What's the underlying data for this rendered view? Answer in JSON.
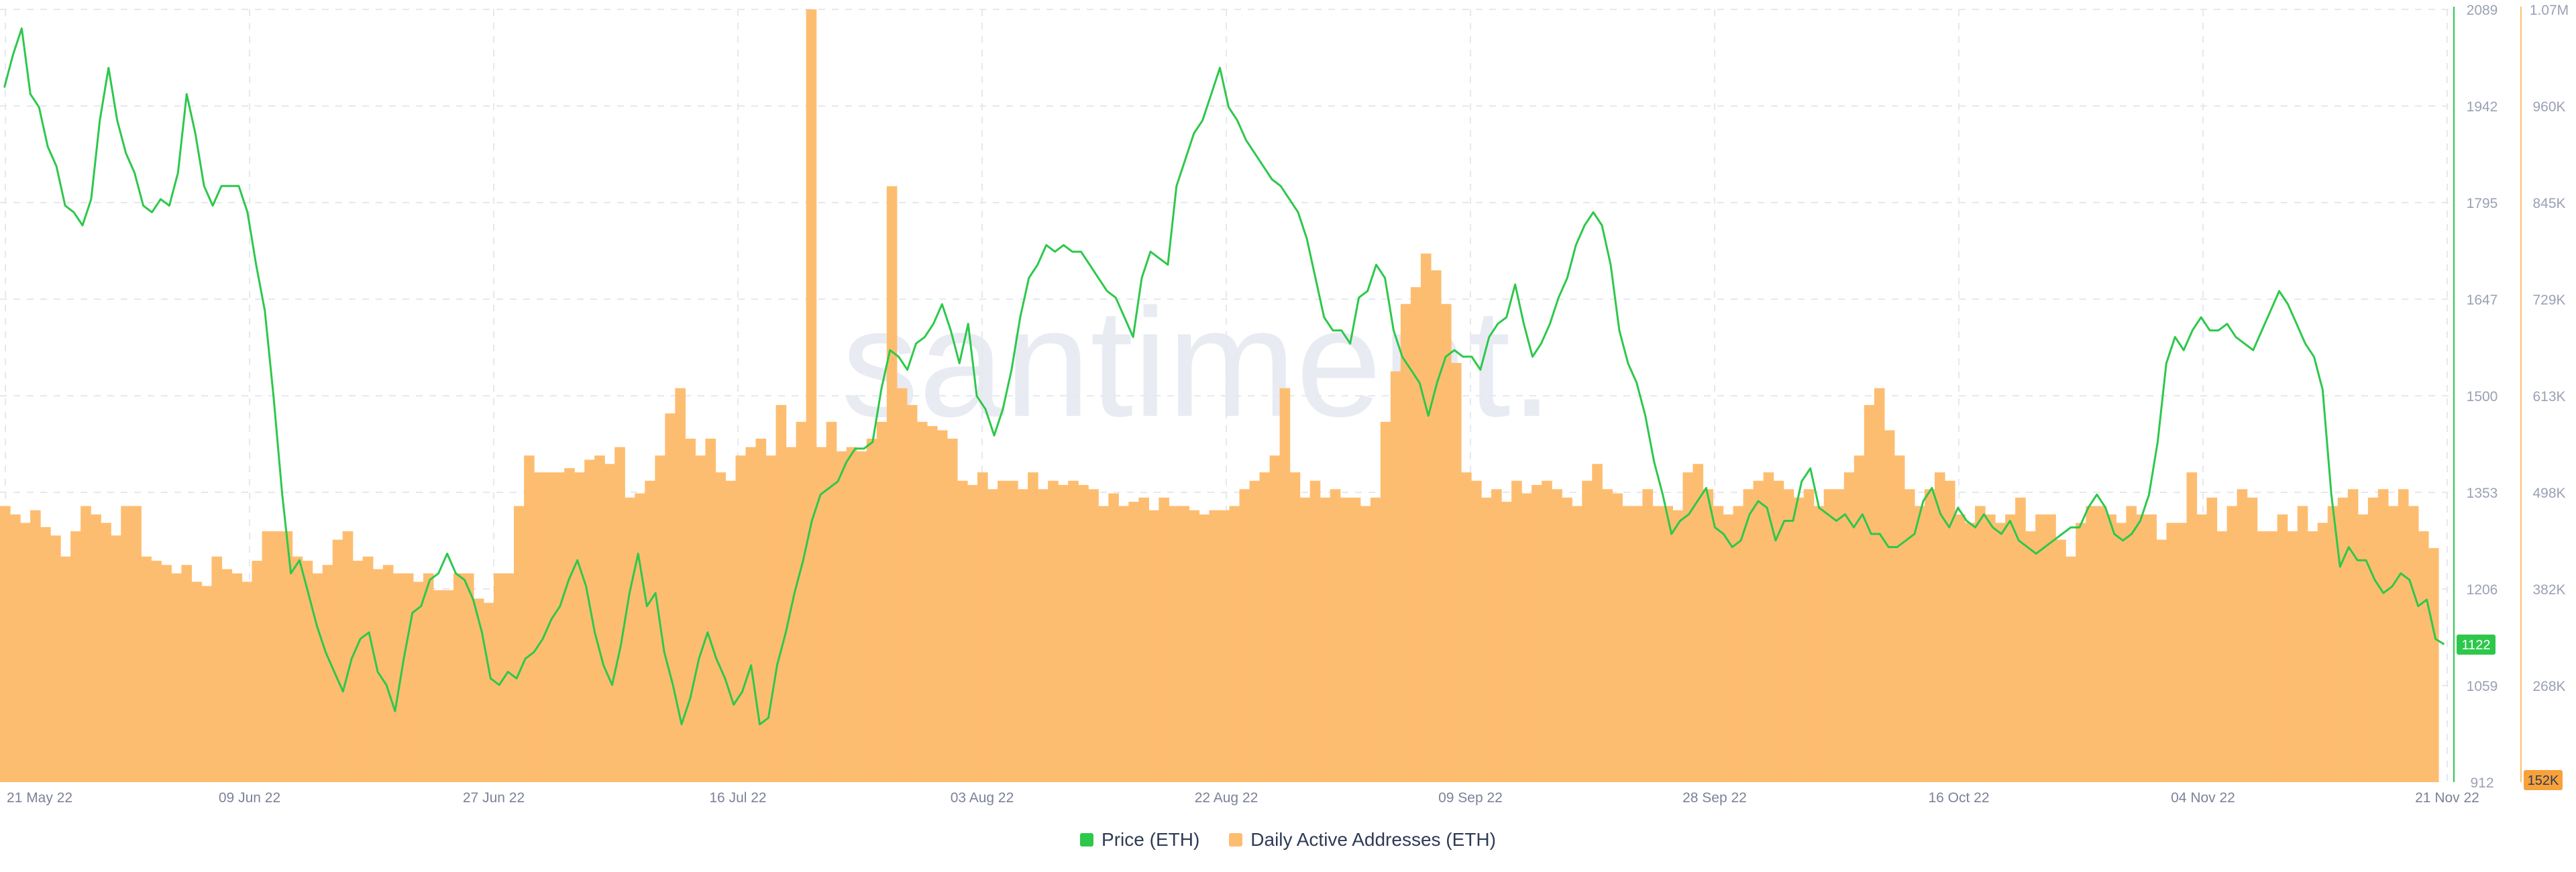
{
  "watermark": "santiment.",
  "colors": {
    "price": "#2dc84b",
    "daa": "#fdbd70",
    "daa_badge": "#f7a13a",
    "grid": "#e6e8ee",
    "tick_text": "#9aa1b4",
    "date_text": "#7b8299",
    "watermark": "#e9ebf3"
  },
  "price_badge": "1122",
  "daa_badge": "152K",
  "legend": [
    {
      "label": "Price (ETH)",
      "color": "#2dc84b"
    },
    {
      "label": "Daily Active Addresses (ETH)",
      "color": "#fdbd70"
    }
  ],
  "chart_data": {
    "type": "bar+line",
    "x_range": [
      "2022-05-21",
      "2022-11-21"
    ],
    "x_ticks": [
      "21 May 22",
      "09 Jun 22",
      "27 Jun 22",
      "16 Jul 22",
      "03 Aug 22",
      "22 Aug 22",
      "09 Sep 22",
      "28 Sep 22",
      "16 Oct 22",
      "04 Nov 22",
      "21 Nov 22"
    ],
    "price_axis": {
      "min": 912,
      "max": 2089,
      "ticks": [
        "2089",
        "1942",
        "1795",
        "1647",
        "1500",
        "1353",
        "1206",
        "1059",
        "912"
      ]
    },
    "daa_axis": {
      "min": 152000,
      "max": 1070000,
      "ticks": [
        "1.07M",
        "960K",
        "845K",
        "729K",
        "613K",
        "498K",
        "382K",
        "268K"
      ]
    },
    "grid": true,
    "legend_position": "bottom",
    "series": [
      {
        "name": "Daily Active Addresses (ETH)",
        "kind": "bar",
        "axis": "right",
        "values": [
          480,
          470,
          460,
          475,
          455,
          445,
          420,
          450,
          480,
          470,
          460,
          445,
          480,
          480,
          420,
          415,
          410,
          400,
          410,
          390,
          385,
          420,
          405,
          400,
          390,
          415,
          450,
          450,
          450,
          420,
          415,
          400,
          410,
          440,
          450,
          415,
          420,
          405,
          410,
          400,
          400,
          390,
          400,
          380,
          380,
          400,
          400,
          370,
          365,
          400,
          400,
          480,
          540,
          520,
          520,
          520,
          525,
          520,
          535,
          540,
          530,
          550,
          490,
          495,
          510,
          540,
          590,
          620,
          560,
          540,
          560,
          520,
          510,
          540,
          550,
          560,
          540,
          600,
          550,
          580,
          1070,
          550,
          580,
          545,
          550,
          545,
          560,
          580,
          860,
          620,
          600,
          580,
          575,
          570,
          560,
          510,
          505,
          520,
          500,
          510,
          510,
          500,
          520,
          500,
          510,
          505,
          510,
          505,
          500,
          480,
          495,
          480,
          485,
          490,
          475,
          490,
          480,
          480,
          475,
          470,
          475,
          475,
          480,
          500,
          510,
          520,
          540,
          620,
          520,
          490,
          510,
          490,
          500,
          490,
          490,
          480,
          490,
          580,
          640,
          720,
          740,
          780,
          760,
          720,
          650,
          520,
          510,
          490,
          500,
          485,
          510,
          495,
          505,
          510,
          500,
          490,
          480,
          510,
          530,
          500,
          495,
          480,
          480,
          500,
          480,
          480,
          475,
          520,
          530,
          500,
          480,
          470,
          480,
          500,
          510,
          520,
          510,
          500,
          490,
          500,
          480,
          500,
          500,
          520,
          540,
          600,
          620,
          570,
          540,
          500,
          480,
          500,
          520,
          510,
          470,
          460,
          480,
          470,
          460,
          470,
          490,
          450,
          470,
          470,
          440,
          420,
          460,
          480,
          480,
          470,
          460,
          480,
          470,
          470,
          440,
          460,
          460,
          520,
          470,
          490,
          450,
          480,
          500,
          490,
          450,
          450,
          470,
          450,
          480,
          450,
          460,
          480,
          490,
          500,
          470,
          490,
          500,
          480,
          500,
          480,
          450,
          430,
          152
        ]
      },
      {
        "name": "Price (ETH)",
        "kind": "line",
        "axis": "left",
        "values": [
          1970,
          2020,
          2060,
          1960,
          1940,
          1880,
          1850,
          1790,
          1780,
          1760,
          1800,
          1920,
          2000,
          1920,
          1870,
          1840,
          1790,
          1780,
          1800,
          1790,
          1840,
          1960,
          1900,
          1820,
          1790,
          1820,
          1820,
          1820,
          1780,
          1700,
          1630,
          1500,
          1350,
          1230,
          1250,
          1200,
          1150,
          1110,
          1080,
          1050,
          1100,
          1130,
          1140,
          1080,
          1060,
          1020,
          1100,
          1170,
          1180,
          1220,
          1230,
          1260,
          1230,
          1220,
          1190,
          1140,
          1070,
          1060,
          1080,
          1070,
          1100,
          1110,
          1130,
          1160,
          1180,
          1220,
          1250,
          1210,
          1140,
          1090,
          1060,
          1120,
          1200,
          1260,
          1180,
          1200,
          1110,
          1060,
          1000,
          1040,
          1100,
          1140,
          1100,
          1070,
          1030,
          1050,
          1090,
          1000,
          1010,
          1090,
          1140,
          1200,
          1250,
          1310,
          1350,
          1360,
          1370,
          1400,
          1420,
          1420,
          1430,
          1510,
          1570,
          1560,
          1540,
          1580,
          1590,
          1610,
          1640,
          1600,
          1550,
          1610,
          1500,
          1480,
          1440,
          1480,
          1540,
          1620,
          1680,
          1700,
          1730,
          1720,
          1730,
          1720,
          1720,
          1700,
          1680,
          1660,
          1650,
          1620,
          1590,
          1680,
          1720,
          1710,
          1700,
          1820,
          1860,
          1900,
          1920,
          1960,
          2000,
          1940,
          1920,
          1890,
          1870,
          1850,
          1830,
          1820,
          1800,
          1780,
          1740,
          1680,
          1620,
          1600,
          1600,
          1580,
          1650,
          1660,
          1700,
          1680,
          1600,
          1560,
          1540,
          1520,
          1470,
          1520,
          1560,
          1570,
          1560,
          1560,
          1540,
          1590,
          1610,
          1620,
          1670,
          1610,
          1560,
          1580,
          1610,
          1650,
          1680,
          1730,
          1760,
          1780,
          1760,
          1700,
          1600,
          1550,
          1520,
          1470,
          1400,
          1350,
          1290,
          1310,
          1320,
          1340,
          1360,
          1300,
          1290,
          1270,
          1280,
          1320,
          1340,
          1330,
          1280,
          1310,
          1310,
          1370,
          1390,
          1330,
          1320,
          1310,
          1320,
          1300,
          1320,
          1290,
          1290,
          1270,
          1270,
          1280,
          1290,
          1340,
          1360,
          1320,
          1300,
          1330,
          1310,
          1300,
          1320,
          1300,
          1290,
          1310,
          1280,
          1270,
          1260,
          1270,
          1280,
          1290,
          1300,
          1300,
          1330,
          1350,
          1330,
          1290,
          1280,
          1290,
          1310,
          1350,
          1430,
          1550,
          1590,
          1570,
          1600,
          1620,
          1600,
          1600,
          1610,
          1590,
          1580,
          1570,
          1600,
          1630,
          1660,
          1640,
          1610,
          1580,
          1560,
          1510,
          1350,
          1240,
          1270,
          1250,
          1250,
          1220,
          1200,
          1210,
          1230,
          1220,
          1180,
          1190,
          1130,
          1122
        ]
      }
    ]
  }
}
